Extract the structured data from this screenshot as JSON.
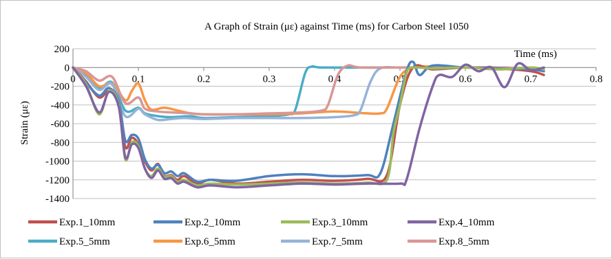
{
  "chart_data": {
    "type": "line",
    "title": "A Graph of Strain (με) against Time (ms) for Carbon Steel 1050",
    "xlabel": "Time (ms)",
    "ylabel": "Strain (με)",
    "xlim": [
      0,
      0.8
    ],
    "ylim": [
      -1400,
      200
    ],
    "xticks": [
      0,
      0.1,
      0.2,
      0.3,
      0.4,
      0.5,
      0.6,
      0.7,
      0.8
    ],
    "yticks": [
      200,
      0,
      -200,
      -400,
      -600,
      -800,
      -1000,
      -1200,
      -1400
    ],
    "xtick_labels": [
      "0",
      "0.1",
      "0.2",
      "0.3",
      "0.4",
      "0.5",
      "0.6",
      "0.7",
      "0.8"
    ],
    "ytick_labels": [
      "200",
      "0",
      "-200",
      "-400",
      "-600",
      "-800",
      "-1000",
      "-1200",
      "-1400"
    ],
    "grid": true,
    "legend_position": "bottom",
    "series": [
      {
        "name": "Exp.1_10mm",
        "color": "#c0504d",
        "points": [
          [
            0,
            0
          ],
          [
            0.02,
            -150
          ],
          [
            0.04,
            -320
          ],
          [
            0.055,
            -250
          ],
          [
            0.07,
            -380
          ],
          [
            0.08,
            -850
          ],
          [
            0.09,
            -750
          ],
          [
            0.1,
            -820
          ],
          [
            0.11,
            -1000
          ],
          [
            0.12,
            -1100
          ],
          [
            0.13,
            -1030
          ],
          [
            0.14,
            -1160
          ],
          [
            0.15,
            -1150
          ],
          [
            0.16,
            -1200
          ],
          [
            0.17,
            -1160
          ],
          [
            0.19,
            -1240
          ],
          [
            0.21,
            -1200
          ],
          [
            0.25,
            -1240
          ],
          [
            0.3,
            -1220
          ],
          [
            0.35,
            -1200
          ],
          [
            0.4,
            -1210
          ],
          [
            0.45,
            -1190
          ],
          [
            0.48,
            -1150
          ],
          [
            0.5,
            -400
          ],
          [
            0.52,
            0
          ],
          [
            0.55,
            -20
          ],
          [
            0.6,
            0
          ],
          [
            0.65,
            -10
          ],
          [
            0.7,
            -40
          ],
          [
            0.72,
            -80
          ]
        ]
      },
      {
        "name": "Exp.2_10mm",
        "color": "#4f81bd",
        "points": [
          [
            0,
            0
          ],
          [
            0.02,
            -160
          ],
          [
            0.04,
            -300
          ],
          [
            0.055,
            -220
          ],
          [
            0.07,
            -360
          ],
          [
            0.08,
            -780
          ],
          [
            0.09,
            -720
          ],
          [
            0.1,
            -760
          ],
          [
            0.11,
            -980
          ],
          [
            0.12,
            -1080
          ],
          [
            0.13,
            -1040
          ],
          [
            0.14,
            -1130
          ],
          [
            0.15,
            -1110
          ],
          [
            0.16,
            -1160
          ],
          [
            0.17,
            -1130
          ],
          [
            0.19,
            -1220
          ],
          [
            0.21,
            -1200
          ],
          [
            0.25,
            -1210
          ],
          [
            0.3,
            -1160
          ],
          [
            0.35,
            -1140
          ],
          [
            0.4,
            -1160
          ],
          [
            0.45,
            -1150
          ],
          [
            0.47,
            -1130
          ],
          [
            0.49,
            -600
          ],
          [
            0.51,
            -40
          ],
          [
            0.52,
            60
          ],
          [
            0.53,
            -80
          ],
          [
            0.55,
            20
          ],
          [
            0.6,
            0
          ],
          [
            0.65,
            -10
          ],
          [
            0.7,
            -20
          ],
          [
            0.72,
            -40
          ]
        ]
      },
      {
        "name": "Exp.3_10mm",
        "color": "#9bbb59",
        "points": [
          [
            0,
            0
          ],
          [
            0.02,
            -180
          ],
          [
            0.04,
            -500
          ],
          [
            0.055,
            -250
          ],
          [
            0.07,
            -400
          ],
          [
            0.08,
            -980
          ],
          [
            0.09,
            -800
          ],
          [
            0.1,
            -840
          ],
          [
            0.11,
            -1080
          ],
          [
            0.12,
            -1160
          ],
          [
            0.13,
            -1080
          ],
          [
            0.14,
            -1170
          ],
          [
            0.15,
            -1160
          ],
          [
            0.16,
            -1220
          ],
          [
            0.17,
            -1200
          ],
          [
            0.19,
            -1260
          ],
          [
            0.21,
            -1240
          ],
          [
            0.25,
            -1250
          ],
          [
            0.3,
            -1240
          ],
          [
            0.35,
            -1230
          ],
          [
            0.4,
            -1240
          ],
          [
            0.45,
            -1230
          ],
          [
            0.48,
            -1200
          ],
          [
            0.49,
            -700
          ],
          [
            0.5,
            -400
          ],
          [
            0.51,
            -60
          ],
          [
            0.52,
            0
          ],
          [
            0.55,
            -10
          ],
          [
            0.6,
            0
          ],
          [
            0.65,
            -20
          ],
          [
            0.7,
            0
          ],
          [
            0.72,
            -20
          ]
        ]
      },
      {
        "name": "Exp.4_10mm",
        "color": "#8064a2",
        "points": [
          [
            0,
            0
          ],
          [
            0.02,
            -200
          ],
          [
            0.04,
            -480
          ],
          [
            0.055,
            -260
          ],
          [
            0.07,
            -420
          ],
          [
            0.08,
            -960
          ],
          [
            0.09,
            -820
          ],
          [
            0.1,
            -860
          ],
          [
            0.11,
            -1080
          ],
          [
            0.12,
            -1180
          ],
          [
            0.13,
            -1100
          ],
          [
            0.14,
            -1190
          ],
          [
            0.15,
            -1180
          ],
          [
            0.16,
            -1240
          ],
          [
            0.17,
            -1220
          ],
          [
            0.19,
            -1280
          ],
          [
            0.21,
            -1260
          ],
          [
            0.25,
            -1280
          ],
          [
            0.3,
            -1260
          ],
          [
            0.35,
            -1240
          ],
          [
            0.4,
            -1250
          ],
          [
            0.45,
            -1240
          ],
          [
            0.5,
            -1240
          ],
          [
            0.51,
            -1200
          ],
          [
            0.53,
            -650
          ],
          [
            0.55,
            -200
          ],
          [
            0.56,
            -80
          ],
          [
            0.58,
            -100
          ],
          [
            0.6,
            30
          ],
          [
            0.62,
            -40
          ],
          [
            0.64,
            0
          ],
          [
            0.66,
            -210
          ],
          [
            0.68,
            40
          ],
          [
            0.7,
            -30
          ],
          [
            0.72,
            0
          ]
        ]
      },
      {
        "name": "Exp.5_5mm",
        "color": "#4bacc6",
        "points": [
          [
            0,
            0
          ],
          [
            0.02,
            -80
          ],
          [
            0.04,
            -220
          ],
          [
            0.06,
            -160
          ],
          [
            0.08,
            -460
          ],
          [
            0.1,
            -430
          ],
          [
            0.11,
            -490
          ],
          [
            0.13,
            -520
          ],
          [
            0.15,
            -530
          ],
          [
            0.18,
            -520
          ],
          [
            0.2,
            -540
          ],
          [
            0.25,
            -530
          ],
          [
            0.3,
            -520
          ],
          [
            0.33,
            -500
          ],
          [
            0.34,
            -450
          ],
          [
            0.355,
            -60
          ],
          [
            0.365,
            10
          ],
          [
            0.38,
            0
          ],
          [
            0.45,
            0
          ],
          [
            0.5,
            0
          ],
          [
            0.55,
            0
          ],
          [
            0.6,
            0
          ],
          [
            0.65,
            0
          ],
          [
            0.7,
            -10
          ]
        ]
      },
      {
        "name": "Exp.6_5mm",
        "color": "#f79646",
        "points": [
          [
            0,
            0
          ],
          [
            0.02,
            -60
          ],
          [
            0.04,
            -200
          ],
          [
            0.06,
            -170
          ],
          [
            0.08,
            -350
          ],
          [
            0.09,
            -250
          ],
          [
            0.1,
            -170
          ],
          [
            0.11,
            -350
          ],
          [
            0.12,
            -450
          ],
          [
            0.14,
            -430
          ],
          [
            0.16,
            -460
          ],
          [
            0.18,
            -490
          ],
          [
            0.2,
            -500
          ],
          [
            0.25,
            -500
          ],
          [
            0.3,
            -500
          ],
          [
            0.35,
            -490
          ],
          [
            0.4,
            -470
          ],
          [
            0.45,
            -490
          ],
          [
            0.47,
            -490
          ],
          [
            0.48,
            -440
          ],
          [
            0.5,
            -100
          ],
          [
            0.52,
            0
          ],
          [
            0.55,
            10
          ],
          [
            0.6,
            0
          ],
          [
            0.65,
            0
          ],
          [
            0.7,
            -10
          ]
        ]
      },
      {
        "name": "Exp.7_5mm",
        "color": "#95b3d7",
        "points": [
          [
            0,
            0
          ],
          [
            0.02,
            -100
          ],
          [
            0.04,
            -240
          ],
          [
            0.06,
            -180
          ],
          [
            0.08,
            -520
          ],
          [
            0.1,
            -440
          ],
          [
            0.11,
            -500
          ],
          [
            0.13,
            -560
          ],
          [
            0.15,
            -550
          ],
          [
            0.17,
            -540
          ],
          [
            0.2,
            -550
          ],
          [
            0.25,
            -540
          ],
          [
            0.3,
            -540
          ],
          [
            0.35,
            -540
          ],
          [
            0.4,
            -530
          ],
          [
            0.43,
            -510
          ],
          [
            0.44,
            -450
          ],
          [
            0.455,
            -150
          ],
          [
            0.47,
            -10
          ],
          [
            0.5,
            0
          ],
          [
            0.55,
            0
          ],
          [
            0.6,
            0
          ],
          [
            0.65,
            0
          ],
          [
            0.7,
            -10
          ]
        ]
      },
      {
        "name": "Exp.8_5mm",
        "color": "#d99694",
        "points": [
          [
            0,
            0
          ],
          [
            0.02,
            -40
          ],
          [
            0.04,
            -140
          ],
          [
            0.06,
            -100
          ],
          [
            0.08,
            -380
          ],
          [
            0.1,
            -320
          ],
          [
            0.11,
            -440
          ],
          [
            0.13,
            -470
          ],
          [
            0.15,
            -480
          ],
          [
            0.18,
            -490
          ],
          [
            0.2,
            -500
          ],
          [
            0.25,
            -500
          ],
          [
            0.3,
            -490
          ],
          [
            0.35,
            -480
          ],
          [
            0.38,
            -460
          ],
          [
            0.39,
            -400
          ],
          [
            0.405,
            -80
          ],
          [
            0.42,
            20
          ],
          [
            0.44,
            0
          ],
          [
            0.5,
            0
          ],
          [
            0.55,
            0
          ],
          [
            0.6,
            0
          ],
          [
            0.65,
            0
          ],
          [
            0.7,
            -10
          ]
        ]
      }
    ]
  }
}
